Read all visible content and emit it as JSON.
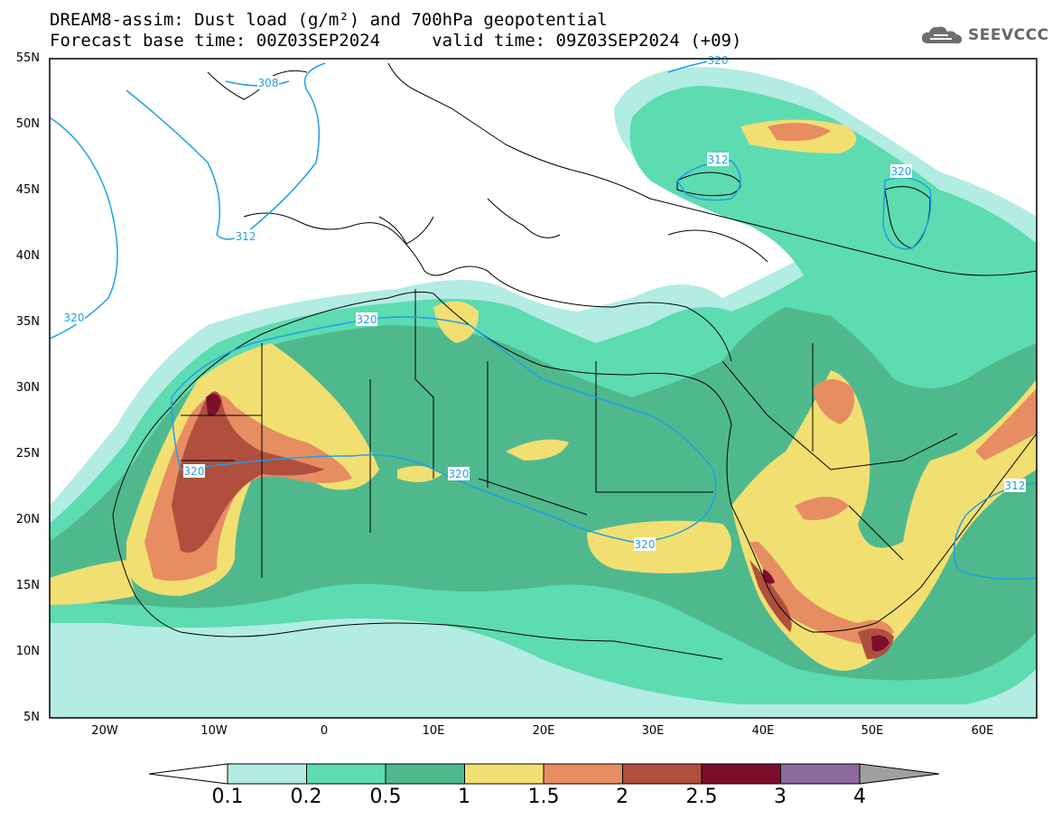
{
  "header": {
    "title_line1": "DREAM8-assim: Dust load (g/m²) and 700hPa geopotential",
    "title_line2": "Forecast base time: 00Z03SEP2024     valid time: 09Z03SEP2024 (+09)",
    "logo_text": "SEEVCCC"
  },
  "map": {
    "lat_labels": [
      "55N",
      "50N",
      "45N",
      "40N",
      "35N",
      "30N",
      "25N",
      "20N",
      "15N",
      "10N",
      "5N"
    ],
    "lon_labels": [
      "20W",
      "10W",
      "0",
      "10E",
      "20E",
      "30E",
      "40E",
      "50E",
      "60E"
    ],
    "contour_labels": [
      "308",
      "312",
      "320",
      "312",
      "320",
      "320",
      "320",
      "320",
      "320",
      "320",
      "312"
    ]
  },
  "colorbar": {
    "labels": [
      "0.1",
      "0.2",
      "0.5",
      "1",
      "1.5",
      "2",
      "2.5",
      "3",
      "4"
    ],
    "colors": [
      "#b3ece2",
      "#5ddbb1",
      "#4fb98d",
      "#f1df72",
      "#e68d62",
      "#b04f3e",
      "#7c0e2c",
      "#8c6a9e",
      "#a0a0a0"
    ]
  }
}
